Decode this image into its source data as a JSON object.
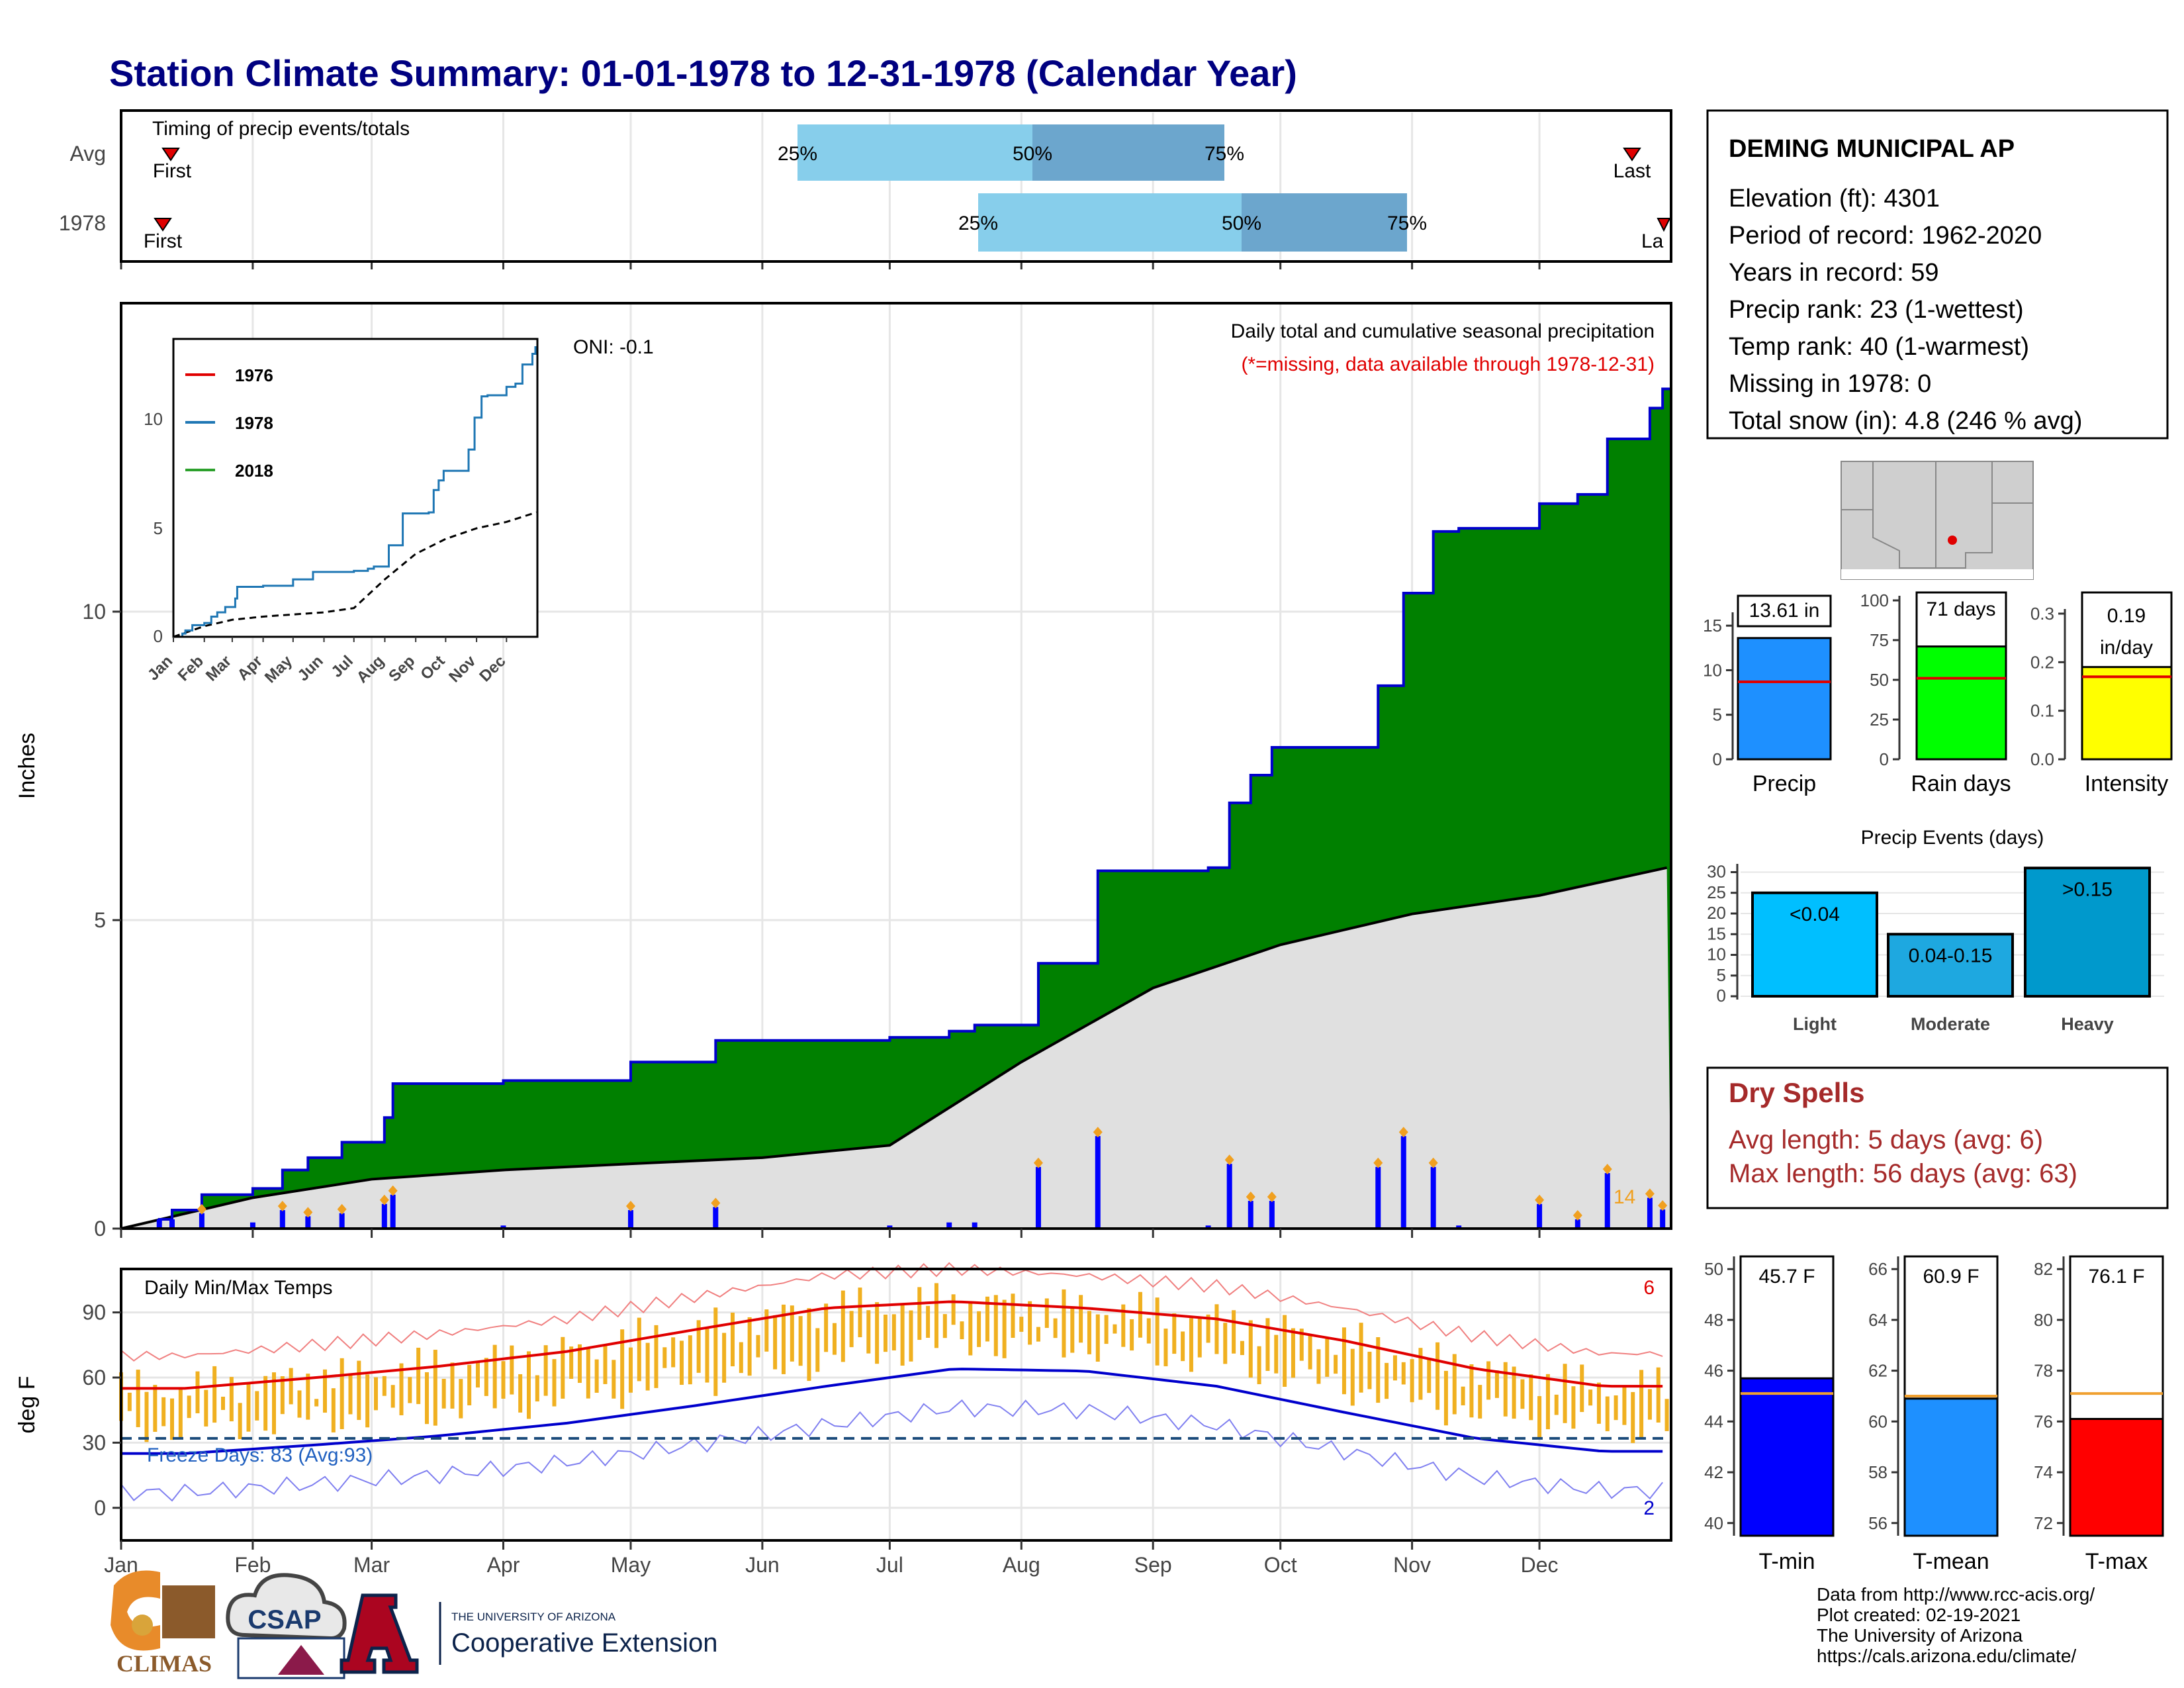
{
  "title": "Station Climate Summary: 01-01-1978 to 12-31-1978 (Calendar Year)",
  "months": [
    "Jan",
    "Feb",
    "Mar",
    "Apr",
    "May",
    "Jun",
    "Jul",
    "Aug",
    "Sep",
    "Oct",
    "Nov",
    "Dec"
  ],
  "timing": {
    "label": "Timing of precip events/totals",
    "rows": [
      {
        "name": "Avg",
        "first": "First",
        "last": "Last",
        "q25": "25%",
        "q50": "50%",
        "q75": "75%"
      },
      {
        "name": "1978",
        "first": "First",
        "last": "La",
        "q25": "25%",
        "q50": "50%",
        "q75": "75%"
      }
    ]
  },
  "station": {
    "name": "DEMING MUNICIPAL AP",
    "lines": [
      "Elevation (ft): 4301",
      "Period of record: 1962-2020",
      "Years in record: 59",
      "Precip rank: 23 (1-wettest)",
      "Temp rank: 40 (1-warmest)",
      "Missing in 1978: 0",
      "Total snow (in): 4.8 (246 % avg)"
    ]
  },
  "precip_panel": {
    "ylabel": "Inches",
    "oni": "ONI: -0.1",
    "subtitle": "Daily total and cumulative seasonal precipitation",
    "missing_note": "(*=missing, data available through 1978-12-31)",
    "extra_label": "14",
    "yticks": [
      "0",
      "5",
      "10"
    ]
  },
  "inset": {
    "legend": [
      "1976",
      "1978",
      "2018"
    ],
    "yticks": [
      "0",
      "5",
      "10"
    ]
  },
  "summary_bars": [
    {
      "label": "Precip",
      "value_text": "13.61 in",
      "yticks": [
        "0",
        "5",
        "10",
        "15"
      ]
    },
    {
      "label": "Rain days",
      "value_text": "71 days",
      "yticks": [
        "0",
        "25",
        "50",
        "75",
        "100"
      ]
    },
    {
      "label": "Intensity",
      "value_text": "0.19",
      "value_text2": "in/day",
      "yticks": [
        "0.0",
        "0.1",
        "0.2",
        "0.3"
      ]
    }
  ],
  "events": {
    "title": "Precip Events (days)",
    "yticks": [
      "0",
      "5",
      "10",
      "15",
      "20",
      "25",
      "30"
    ],
    "bars": [
      {
        "label": "Light",
        "text": "<0.04"
      },
      {
        "label": "Moderate",
        "text": "0.04-0.15"
      },
      {
        "label": "Heavy",
        "text": ">0.15"
      }
    ]
  },
  "dry_spells": {
    "title": "Dry Spells",
    "avg": "Avg length: 5 days (avg: 6)",
    "max": "Max length: 56 days (avg: 63)"
  },
  "temp_panel": {
    "ylabel": "deg F",
    "title": "Daily Min/Max Temps",
    "freeze": "Freeze Days: 83 (Avg:93)",
    "count_hi": "6",
    "count_lo": "2",
    "yticks": [
      "0",
      "30",
      "60",
      "90"
    ]
  },
  "temp_bars": [
    {
      "label": "T-min",
      "value_text": "45.7 F",
      "yticks": [
        "40",
        "42",
        "44",
        "46",
        "48",
        "50"
      ]
    },
    {
      "label": "T-mean",
      "value_text": "60.9 F",
      "yticks": [
        "56",
        "58",
        "60",
        "62",
        "64",
        "66"
      ]
    },
    {
      "label": "T-max",
      "value_text": "76.1 F",
      "yticks": [
        "72",
        "74",
        "76",
        "78",
        "80",
        "82"
      ]
    }
  ],
  "logos": {
    "climas": "CLIMAS",
    "csap": "CSAP",
    "ua_small": "THE UNIVERSITY OF ARIZONA",
    "ua_big": "Cooperative Extension"
  },
  "footer": [
    "Data from http://www.rcc-acis.org/",
    "Plot created: 02-19-2021",
    "The University of Arizona",
    "https://cals.arizona.edu/climate/"
  ],
  "colors": {
    "cumulative_1978": "#008000",
    "cumulative_avg": "#e0e0e0",
    "daily_bars": "#0000ff",
    "precip_bar": "#1e90ff",
    "raindays_bar": "#00ff00",
    "intensity_bar": "#ffff00",
    "tmax_line": "#e00000",
    "tmin_line": "#0000cc",
    "temp_range": "#f0b020"
  },
  "chart_data": [
    {
      "type": "area",
      "title": "Daily total and cumulative seasonal precipitation",
      "ylabel": "Inches",
      "ylim": [
        0,
        15
      ],
      "series": [
        {
          "name": "1978",
          "points": [
            [
              "01-01",
              0
            ],
            [
              "01-10",
              0.15
            ],
            [
              "01-13",
              0.3
            ],
            [
              "01-20",
              0.55
            ],
            [
              "02-01",
              0.65
            ],
            [
              "02-08",
              0.95
            ],
            [
              "02-14",
              1.15
            ],
            [
              "02-22",
              1.4
            ],
            [
              "03-04",
              1.8
            ],
            [
              "03-06",
              2.35
            ],
            [
              "04-01",
              2.4
            ],
            [
              "04-20",
              2.4
            ],
            [
              "05-01",
              2.7
            ],
            [
              "05-21",
              3.05
            ],
            [
              "06-10",
              3.05
            ],
            [
              "07-01",
              3.1
            ],
            [
              "07-15",
              3.2
            ],
            [
              "07-21",
              3.3
            ],
            [
              "08-05",
              4.3
            ],
            [
              "08-19",
              5.8
            ],
            [
              "09-14",
              5.85
            ],
            [
              "09-19",
              6.9
            ],
            [
              "09-24",
              7.35
            ],
            [
              "09-29",
              7.8
            ],
            [
              "10-15",
              7.8
            ],
            [
              "10-24",
              8.8
            ],
            [
              "10-30",
              10.3
            ],
            [
              "11-06",
              11.3
            ],
            [
              "11-12",
              11.35
            ],
            [
              "11-24",
              11.35
            ],
            [
              "12-01",
              11.75
            ],
            [
              "12-10",
              11.9
            ],
            [
              "12-17",
              12.8
            ],
            [
              "12-27",
              13.3
            ],
            [
              "12-30",
              13.61
            ]
          ]
        },
        {
          "name": "Avg",
          "points": [
            [
              "01-01",
              0
            ],
            [
              "02-01",
              0.5
            ],
            [
              "03-01",
              0.8
            ],
            [
              "04-01",
              0.95
            ],
            [
              "05-01",
              1.05
            ],
            [
              "06-01",
              1.15
            ],
            [
              "07-01",
              1.35
            ],
            [
              "08-01",
              2.7
            ],
            [
              "09-01",
              3.9
            ],
            [
              "10-01",
              4.6
            ],
            [
              "11-01",
              5.1
            ],
            [
              "12-01",
              5.4
            ],
            [
              "12-31",
              5.85
            ]
          ]
        }
      ]
    },
    {
      "type": "line",
      "title": "Daily Min/Max Temps",
      "ylabel": "deg F",
      "ylim": [
        -15,
        110
      ],
      "x": [
        "Jan",
        "Feb",
        "Mar",
        "Apr",
        "May",
        "Jun",
        "Jul",
        "Aug",
        "Sep",
        "Oct",
        "Nov",
        "Dec"
      ],
      "series": [
        {
          "name": "Avg max",
          "values": [
            55,
            60,
            65,
            72,
            82,
            92,
            95,
            92,
            87,
            77,
            64,
            56
          ]
        },
        {
          "name": "Avg min",
          "values": [
            25,
            29,
            33,
            39,
            47,
            56,
            64,
            63,
            56,
            44,
            32,
            26
          ]
        }
      ]
    },
    {
      "type": "bar",
      "title": "Precip Events (days)",
      "categories": [
        "Light",
        "Moderate",
        "Heavy"
      ],
      "values": [
        25,
        15,
        31
      ],
      "ylim": [
        0,
        32
      ]
    },
    {
      "type": "bar",
      "categories": [
        "Precip",
        "Rain days",
        "Intensity"
      ],
      "values": [
        13.61,
        71,
        0.19
      ],
      "averages": [
        8.7,
        51,
        0.17
      ]
    },
    {
      "type": "bar",
      "categories": [
        "T-min",
        "T-mean",
        "T-max"
      ],
      "values": [
        45.7,
        60.9,
        76.1
      ],
      "averages": [
        45.1,
        61.0,
        77.1
      ]
    }
  ]
}
